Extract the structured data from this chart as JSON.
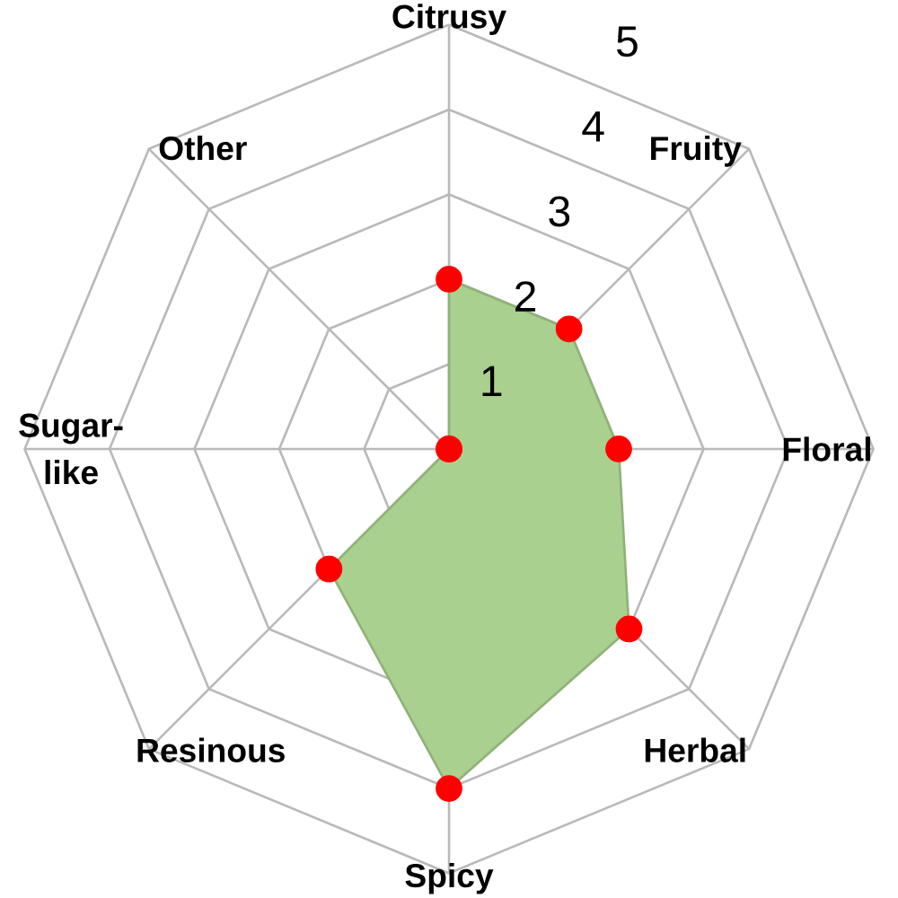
{
  "chart_data": {
    "type": "radar",
    "categories": [
      "Citrusy",
      "Fruity",
      "Floral",
      "Herbal",
      "Spicy",
      "Resinous",
      "Sugar-like",
      "Other"
    ],
    "series": [
      {
        "color": "#a9d08e",
        "colors": [
          "#ff0000",
          "#ff0000",
          "#ff0000",
          "#ff0000",
          "#ff0000",
          "#ff0000",
          "#ff0000",
          "#ff0000"
        ],
        "values": [
          2,
          2,
          2,
          3,
          4,
          2,
          0,
          0
        ]
      }
    ],
    "ylim": [
      0,
      5
    ],
    "yticks": [
      1,
      2,
      3,
      4,
      5
    ],
    "grid": true,
    "marker": "circle"
  }
}
